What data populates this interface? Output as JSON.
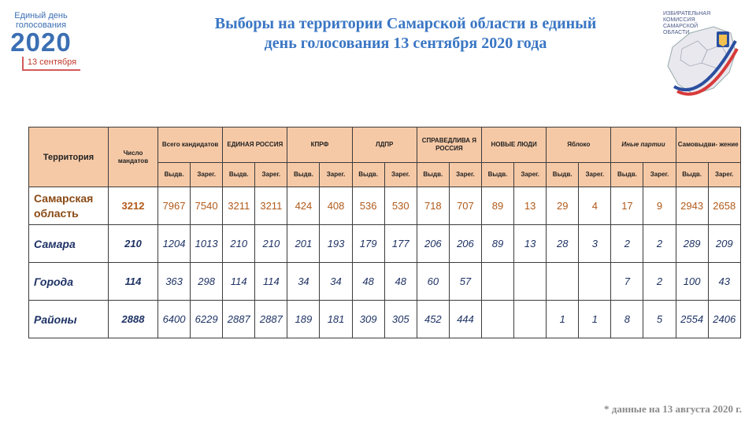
{
  "logo_left": {
    "line1": "Единый день",
    "line2": "голосования",
    "year": "2020",
    "date": "13 сентября"
  },
  "title": {
    "line1": "Выборы на территории Самарской области в единый",
    "line2": "день голосования 13 сентября 2020 года"
  },
  "logo_right": {
    "text": "ИЗБИРАТЕЛЬНАЯ КОМИССИЯ САМАРСКОЙ ОБЛАСТИ"
  },
  "colors": {
    "title": "#3a76c4",
    "header_bg": "#f6c9a6",
    "region_text": "#b15a1a",
    "body_text": "#1e3264"
  },
  "table": {
    "territory_header": "Территория",
    "mandates_header": "Число мандатов",
    "groups": [
      "Всего кандидатов",
      "ЕДИНАЯ РОССИЯ",
      "КПРФ",
      "ЛДПР",
      "СПРАВЕДЛИВА Я РОССИЯ",
      "НОВЫЕ ЛЮДИ",
      "Яблоко",
      "Иные партии",
      "Самовыдви- жение"
    ],
    "sub_nominated": "Выдв.",
    "sub_registered": "Зарег.",
    "rows": [
      {
        "name": "Самарская область",
        "mandates": "3212",
        "cells": [
          "7967",
          "7540",
          "3211",
          "3211",
          "424",
          "408",
          "536",
          "530",
          "718",
          "707",
          "89",
          "13",
          "29",
          "4",
          "17",
          "9",
          "2943",
          "2658"
        ]
      },
      {
        "name": "Самара",
        "mandates": "210",
        "cells": [
          "1204",
          "1013",
          "210",
          "210",
          "201",
          "193",
          "179",
          "177",
          "206",
          "206",
          "89",
          "13",
          "28",
          "3",
          "2",
          "2",
          "289",
          "209"
        ]
      },
      {
        "name": "Города",
        "mandates": "114",
        "cells": [
          "363",
          "298",
          "114",
          "114",
          "34",
          "34",
          "48",
          "48",
          "60",
          "57",
          "",
          "",
          "",
          "",
          "7",
          "2",
          "100",
          "43"
        ]
      },
      {
        "name": "Районы",
        "mandates": "2888",
        "cells": [
          "6400",
          "6229",
          "2887",
          "2887",
          "189",
          "181",
          "309",
          "305",
          "452",
          "444",
          "",
          "",
          "1",
          "1",
          "8",
          "5",
          "2554",
          "2406"
        ]
      }
    ]
  },
  "footnote": "*  данные на 13 августа 2020 г."
}
